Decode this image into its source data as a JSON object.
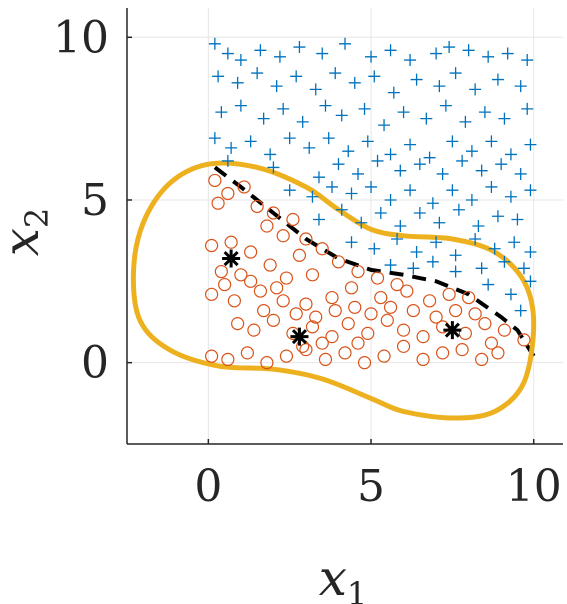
{
  "chart_data": {
    "type": "scatter",
    "title": "",
    "xlabel": "x",
    "xlabel_subscript": "1",
    "ylabel": "x",
    "ylabel_subscript": "2",
    "xlim": [
      -2.5,
      10.9
    ],
    "ylim": [
      -2.5,
      10.9
    ],
    "xticks": [
      0,
      5,
      10
    ],
    "yticks": [
      0,
      5,
      10
    ],
    "xtick_labels": [
      "0",
      "5",
      "10"
    ],
    "ytick_labels": [
      "0",
      "5",
      "10"
    ],
    "grid": true,
    "legend": "none",
    "colors": {
      "plus": "#0072BD",
      "circle": "#D95319",
      "boundary": "#EDB120",
      "dashed": "#000000",
      "star": "#000000",
      "axis": "#262626",
      "grid": "#e6e6e6"
    },
    "series": [
      {
        "marker": "plus",
        "color": "#0072BD",
        "points": [
          [
            0.2,
            9.8
          ],
          [
            0.6,
            9.5
          ],
          [
            1.0,
            9.3
          ],
          [
            1.6,
            9.6
          ],
          [
            2.2,
            9.4
          ],
          [
            2.8,
            9.7
          ],
          [
            3.5,
            9.5
          ],
          [
            4.2,
            9.8
          ],
          [
            5.0,
            9.4
          ],
          [
            5.6,
            9.6
          ],
          [
            6.2,
            9.3
          ],
          [
            7.0,
            9.5
          ],
          [
            7.4,
            9.7
          ],
          [
            8.0,
            9.6
          ],
          [
            8.6,
            9.4
          ],
          [
            9.2,
            9.5
          ],
          [
            9.8,
            9.3
          ],
          [
            0.3,
            8.8
          ],
          [
            0.9,
            8.6
          ],
          [
            1.5,
            8.9
          ],
          [
            2.1,
            8.5
          ],
          [
            2.7,
            8.8
          ],
          [
            3.3,
            8.4
          ],
          [
            3.9,
            8.9
          ],
          [
            4.5,
            8.6
          ],
          [
            5.1,
            8.8
          ],
          [
            5.7,
            8.3
          ],
          [
            6.4,
            8.7
          ],
          [
            7.1,
            8.5
          ],
          [
            7.6,
            8.9
          ],
          [
            8.2,
            8.4
          ],
          [
            8.9,
            8.7
          ],
          [
            9.6,
            8.5
          ],
          [
            0.4,
            7.7
          ],
          [
            1.0,
            7.9
          ],
          [
            1.7,
            7.5
          ],
          [
            2.3,
            7.8
          ],
          [
            2.9,
            7.4
          ],
          [
            3.6,
            7.9
          ],
          [
            4.1,
            7.6
          ],
          [
            4.8,
            7.8
          ],
          [
            5.4,
            7.3
          ],
          [
            6.0,
            7.7
          ],
          [
            6.7,
            7.5
          ],
          [
            7.3,
            7.9
          ],
          [
            7.9,
            7.4
          ],
          [
            8.5,
            7.7
          ],
          [
            9.1,
            7.5
          ],
          [
            9.8,
            7.8
          ],
          [
            0.2,
            6.9
          ],
          [
            0.7,
            6.6
          ],
          [
            1.3,
            6.8
          ],
          [
            1.9,
            6.4
          ],
          [
            2.5,
            6.9
          ],
          [
            3.1,
            6.6
          ],
          [
            3.7,
            6.9
          ],
          [
            4.3,
            6.5
          ],
          [
            4.9,
            6.8
          ],
          [
            5.6,
            6.4
          ],
          [
            6.2,
            6.7
          ],
          [
            6.8,
            6.3
          ],
          [
            7.5,
            6.8
          ],
          [
            8.1,
            6.5
          ],
          [
            8.7,
            6.8
          ],
          [
            9.3,
            6.4
          ],
          [
            9.9,
            6.7
          ],
          [
            0.6,
            6.2
          ],
          [
            2.0,
            6.0
          ],
          [
            3.4,
            5.7
          ],
          [
            4.0,
            6.1
          ],
          [
            4.6,
            5.8
          ],
          [
            5.2,
            6.2
          ],
          [
            5.9,
            5.9
          ],
          [
            6.5,
            6.1
          ],
          [
            7.2,
            5.8
          ],
          [
            7.8,
            6.2
          ],
          [
            8.4,
            5.9
          ],
          [
            9.0,
            6.1
          ],
          [
            9.6,
            5.8
          ],
          [
            2.5,
            5.3
          ],
          [
            3.2,
            5.1
          ],
          [
            3.8,
            5.4
          ],
          [
            4.4,
            5.2
          ],
          [
            5.0,
            5.4
          ],
          [
            5.6,
            5.0
          ],
          [
            6.2,
            5.3
          ],
          [
            6.9,
            4.9
          ],
          [
            7.5,
            5.3
          ],
          [
            8.1,
            5.0
          ],
          [
            8.7,
            5.4
          ],
          [
            9.3,
            5.1
          ],
          [
            9.9,
            5.3
          ],
          [
            3.4,
            4.4
          ],
          [
            4.1,
            4.7
          ],
          [
            4.7,
            4.3
          ],
          [
            5.3,
            4.6
          ],
          [
            5.9,
            4.2
          ],
          [
            6.5,
            4.6
          ],
          [
            7.1,
            4.3
          ],
          [
            7.7,
            4.7
          ],
          [
            8.3,
            4.2
          ],
          [
            8.9,
            4.5
          ],
          [
            9.5,
            4.4
          ],
          [
            4.4,
            3.7
          ],
          [
            5.1,
            3.5
          ],
          [
            5.8,
            3.8
          ],
          [
            6.4,
            3.4
          ],
          [
            7.0,
            3.7
          ],
          [
            7.6,
            3.3
          ],
          [
            8.2,
            3.8
          ],
          [
            8.8,
            3.5
          ],
          [
            9.4,
            3.7
          ],
          [
            9.9,
            3.4
          ],
          [
            5.6,
            3.0
          ],
          [
            6.3,
            2.9
          ],
          [
            6.9,
            3.1
          ],
          [
            7.6,
            2.8
          ],
          [
            8.4,
            2.9
          ],
          [
            9.1,
            3.1
          ],
          [
            9.7,
            2.9
          ],
          [
            8.6,
            2.4
          ],
          [
            9.3,
            2.1
          ],
          [
            9.9,
            2.5
          ],
          [
            9.6,
            1.6
          ]
        ]
      },
      {
        "marker": "circle",
        "color": "#D95319",
        "points": [
          [
            0.2,
            5.6
          ],
          [
            0.6,
            5.2
          ],
          [
            1.1,
            5.4
          ],
          [
            0.3,
            4.9
          ],
          [
            1.5,
            4.8
          ],
          [
            2.0,
            4.6
          ],
          [
            2.6,
            4.4
          ],
          [
            1.8,
            4.2
          ],
          [
            2.3,
            3.9
          ],
          [
            3.0,
            3.8
          ],
          [
            0.1,
            3.6
          ],
          [
            0.7,
            3.7
          ],
          [
            1.3,
            3.4
          ],
          [
            2.8,
            3.3
          ],
          [
            3.5,
            3.5
          ],
          [
            4.0,
            3.1
          ],
          [
            1.9,
            3.0
          ],
          [
            0.4,
            2.8
          ],
          [
            1.0,
            2.7
          ],
          [
            2.4,
            2.6
          ],
          [
            3.2,
            2.7
          ],
          [
            4.6,
            2.8
          ],
          [
            5.2,
            2.6
          ],
          [
            5.8,
            2.4
          ],
          [
            0.1,
            2.1
          ],
          [
            0.8,
            1.9
          ],
          [
            1.6,
            2.2
          ],
          [
            2.3,
            1.9
          ],
          [
            3.0,
            1.8
          ],
          [
            3.8,
            2.0
          ],
          [
            4.5,
            1.7
          ],
          [
            5.3,
            2.0
          ],
          [
            6.1,
            2.2
          ],
          [
            6.8,
            1.9
          ],
          [
            7.4,
            2.1
          ],
          [
            8.0,
            2.0
          ],
          [
            0.9,
            1.2
          ],
          [
            1.4,
            1.0
          ],
          [
            2.0,
            1.3
          ],
          [
            2.6,
            0.9
          ],
          [
            3.2,
            1.1
          ],
          [
            3.8,
            0.8
          ],
          [
            4.3,
            1.2
          ],
          [
            4.9,
            0.9
          ],
          [
            5.5,
            1.3
          ],
          [
            6.0,
            1.0
          ],
          [
            6.6,
            0.8
          ],
          [
            7.2,
            1.1
          ],
          [
            7.9,
            0.9
          ],
          [
            8.5,
            1.2
          ],
          [
            9.1,
            1.0
          ],
          [
            9.7,
            0.7
          ],
          [
            0.1,
            0.2
          ],
          [
            0.6,
            0.1
          ],
          [
            1.2,
            0.3
          ],
          [
            1.8,
            0.0
          ],
          [
            2.4,
            0.2
          ],
          [
            3.0,
            0.4
          ],
          [
            3.6,
            0.1
          ],
          [
            4.2,
            0.3
          ],
          [
            4.8,
            0.0
          ],
          [
            5.4,
            0.2
          ],
          [
            6.0,
            0.5
          ],
          [
            6.6,
            0.1
          ],
          [
            7.2,
            0.3
          ],
          [
            7.8,
            0.4
          ],
          [
            8.4,
            0.1
          ],
          [
            8.9,
            0.3
          ],
          [
            1.7,
            1.6
          ],
          [
            2.1,
            2.3
          ],
          [
            2.7,
            1.5
          ],
          [
            3.3,
            1.4
          ],
          [
            3.9,
            1.6
          ],
          [
            4.4,
            2.3
          ],
          [
            5.0,
            1.5
          ],
          [
            5.6,
            1.7
          ],
          [
            6.3,
            1.6
          ],
          [
            7.0,
            1.4
          ],
          [
            7.6,
            1.6
          ],
          [
            8.2,
            1.5
          ],
          [
            8.7,
            0.6
          ],
          [
            3.5,
            0.6
          ],
          [
            2.9,
            0.5
          ],
          [
            4.6,
            0.6
          ],
          [
            1.3,
            2.5
          ],
          [
            0.5,
            2.4
          ]
        ]
      },
      {
        "marker": "star",
        "color": "#000000",
        "points": [
          [
            0.7,
            3.2
          ],
          [
            2.8,
            0.8
          ],
          [
            7.5,
            1.0
          ]
        ]
      }
    ],
    "lines": [
      {
        "style": "dashed",
        "color": "#000000",
        "x": [
          0.2,
          1.0,
          2.0,
          3.0,
          4.0,
          5.0,
          6.0,
          7.0,
          8.0,
          9.0,
          9.5,
          10.0
        ],
        "y": [
          6.0,
          5.4,
          4.6,
          3.8,
          3.2,
          2.85,
          2.7,
          2.5,
          2.1,
          1.4,
          1.0,
          0.2
        ]
      },
      {
        "style": "solid",
        "color": "#EDB120",
        "closed": true,
        "x": [
          0.0,
          1.5,
          3.0,
          4.0,
          5.0,
          6.0,
          7.5,
          8.8,
          9.7,
          10.0,
          9.7,
          8.8,
          7.5,
          6.0,
          5.0,
          3.5,
          2.0,
          0.3,
          -1.2,
          -2.1,
          -2.3,
          -2.0,
          -1.2
        ],
        "y": [
          6.1,
          6.0,
          5.4,
          4.7,
          4.1,
          3.9,
          3.8,
          3.4,
          2.5,
          1.2,
          -0.6,
          -1.5,
          -1.7,
          -1.5,
          -1.1,
          -0.5,
          -0.2,
          -0.1,
          0.4,
          1.3,
          2.8,
          4.3,
          5.5
        ]
      }
    ]
  }
}
